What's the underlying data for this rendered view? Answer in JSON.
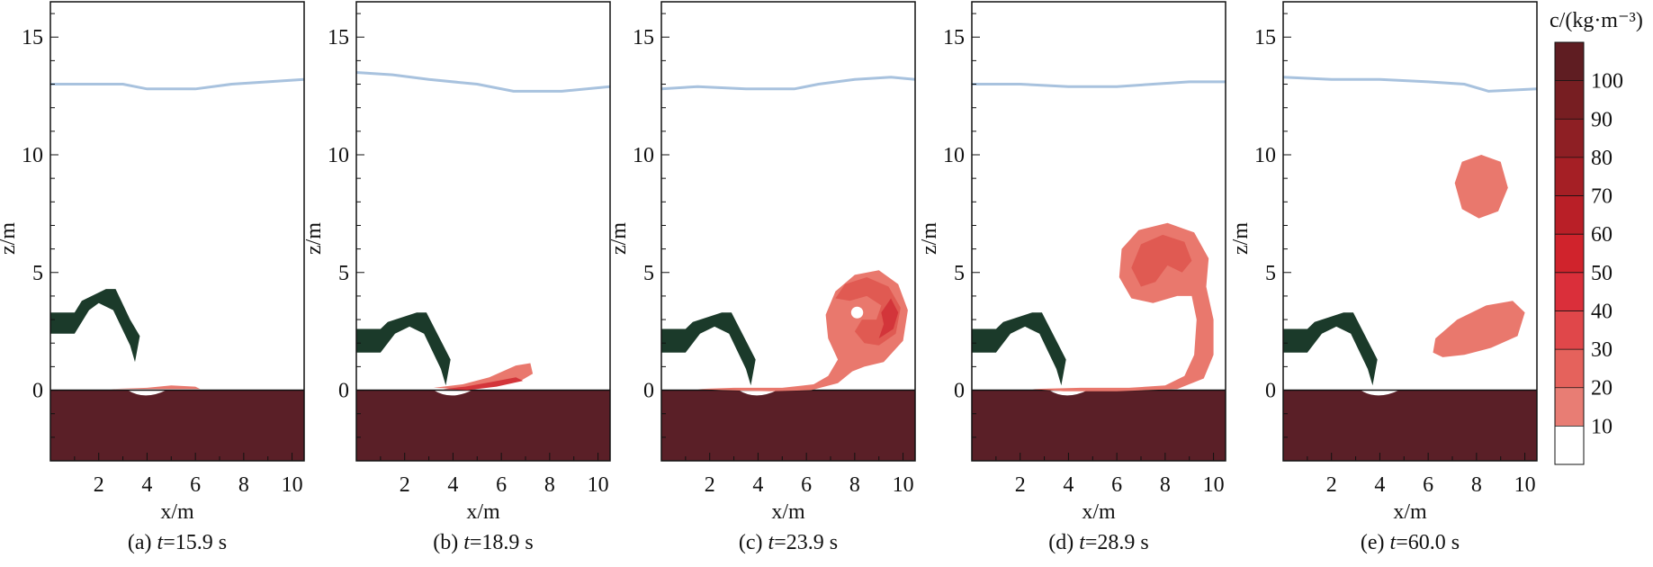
{
  "chart_data": {
    "type": "contour",
    "quantity_label": "c/(kg·m⁻³)",
    "xlabel": "x/m",
    "ylabel": "z/m",
    "xlim": [
      0,
      10.5
    ],
    "ylim": [
      -3,
      16.5
    ],
    "x_ticks": [
      "2",
      "4",
      "6",
      "8",
      "10"
    ],
    "y_ticks": [
      "0",
      "5",
      "10",
      "15"
    ],
    "colorbar": {
      "levels": [
        "10",
        "20",
        "30",
        "40",
        "50",
        "60",
        "70",
        "80",
        "90",
        "100"
      ],
      "colors": [
        "#ffffff",
        "#e87d74",
        "#e5625c",
        "#e0474a",
        "#da2f3a",
        "#d0232c",
        "#b91f27",
        "#a51f25",
        "#8e1f24",
        "#771e22",
        "#5f1d22"
      ]
    },
    "colors": {
      "sediment": "#5a1f27",
      "free_surface": "#a8c2de",
      "obstacle": "#1b3a2a",
      "plume_low": "#e9786d",
      "plume_mid": "#e05a52",
      "plume_high": "#d3353a"
    },
    "panels": [
      {
        "id": "a",
        "label": "(a)",
        "t_label": "t",
        "t_value": "=15.9 s",
        "surface": [
          [
            0,
            13.0
          ],
          [
            1.5,
            13.0
          ],
          [
            3,
            13.0
          ],
          [
            4,
            12.8
          ],
          [
            6,
            12.8
          ],
          [
            7.5,
            13.0
          ],
          [
            9,
            13.1
          ],
          [
            10.5,
            13.2
          ]
        ],
        "obstacle": [
          [
            0,
            3.3
          ],
          [
            1,
            3.3
          ],
          [
            1.3,
            3.8
          ],
          [
            2.3,
            4.3
          ],
          [
            2.7,
            4.3
          ],
          [
            3.3,
            3.0
          ],
          [
            3.7,
            2.3
          ],
          [
            3.5,
            1.2
          ],
          [
            3.3,
            1.9
          ],
          [
            2.6,
            3.4
          ],
          [
            2,
            3.7
          ],
          [
            1.6,
            3.4
          ],
          [
            1,
            2.4
          ],
          [
            0,
            2.4
          ]
        ],
        "plumes": [
          {
            "level": "low",
            "points": [
              [
                2.5,
                0.05
              ],
              [
                4,
                0.1
              ],
              [
                5,
                0.2
              ],
              [
                6,
                0.15
              ],
              [
                6.2,
                0.05
              ]
            ]
          }
        ]
      },
      {
        "id": "b",
        "label": "(b)",
        "t_label": "t",
        "t_value": "=18.9 s",
        "surface": [
          [
            0,
            13.5
          ],
          [
            1.5,
            13.4
          ],
          [
            3,
            13.2
          ],
          [
            5,
            13.0
          ],
          [
            6.5,
            12.7
          ],
          [
            8.5,
            12.7
          ],
          [
            10.5,
            12.9
          ]
        ],
        "obstacle": [
          [
            0,
            2.6
          ],
          [
            1,
            2.6
          ],
          [
            1.3,
            2.9
          ],
          [
            2.5,
            3.3
          ],
          [
            2.9,
            3.3
          ],
          [
            3.5,
            2.1
          ],
          [
            3.9,
            1.3
          ],
          [
            3.7,
            0.2
          ],
          [
            3.5,
            0.9
          ],
          [
            2.8,
            2.4
          ],
          [
            2.2,
            2.7
          ],
          [
            1.6,
            2.4
          ],
          [
            1,
            1.6
          ],
          [
            0,
            1.6
          ]
        ],
        "plumes": [
          {
            "level": "low",
            "points": [
              [
                3.2,
                0.1
              ],
              [
                4.4,
                0.25
              ],
              [
                5.5,
                0.55
              ],
              [
                6.6,
                1.05
              ],
              [
                7.2,
                1.15
              ],
              [
                7.3,
                0.7
              ],
              [
                6.8,
                0.4
              ],
              [
                5.5,
                0.2
              ],
              [
                4.3,
                0.05
              ]
            ]
          },
          {
            "level": "high",
            "points": [
              [
                3.6,
                0.05
              ],
              [
                4.5,
                0.15
              ],
              [
                5.6,
                0.35
              ],
              [
                6.6,
                0.55
              ],
              [
                6.9,
                0.4
              ],
              [
                5.8,
                0.15
              ],
              [
                4.6,
                0.0
              ]
            ]
          }
        ]
      },
      {
        "id": "c",
        "label": "(c)",
        "t_label": "t",
        "t_value": "=23.9 s",
        "surface": [
          [
            0,
            12.8
          ],
          [
            1.5,
            12.9
          ],
          [
            3.5,
            12.8
          ],
          [
            5.5,
            12.8
          ],
          [
            6.5,
            13.0
          ],
          [
            8,
            13.2
          ],
          [
            9.5,
            13.3
          ],
          [
            10.5,
            13.2
          ]
        ],
        "obstacle": [
          [
            0,
            2.6
          ],
          [
            1,
            2.6
          ],
          [
            1.3,
            2.9
          ],
          [
            2.5,
            3.3
          ],
          [
            2.9,
            3.3
          ],
          [
            3.5,
            2.1
          ],
          [
            3.9,
            1.3
          ],
          [
            3.7,
            0.2
          ],
          [
            3.5,
            0.9
          ],
          [
            2.8,
            2.4
          ],
          [
            2.2,
            2.7
          ],
          [
            1.6,
            2.4
          ],
          [
            1,
            1.6
          ],
          [
            0,
            1.6
          ]
        ],
        "plumes": [
          {
            "level": "low",
            "points": [
              [
                1.5,
                0.05
              ],
              [
                3,
                0.1
              ],
              [
                5,
                0.1
              ],
              [
                6.3,
                0.25
              ],
              [
                6.9,
                0.6
              ],
              [
                7.3,
                1.3
              ],
              [
                6.9,
                2.2
              ],
              [
                6.8,
                3.2
              ],
              [
                7.2,
                4.2
              ],
              [
                8,
                4.9
              ],
              [
                9,
                5.1
              ],
              [
                9.8,
                4.5
              ],
              [
                10.2,
                3.4
              ],
              [
                10,
                2.1
              ],
              [
                9.2,
                1.2
              ],
              [
                8.4,
                1.0
              ],
              [
                7.9,
                0.8
              ],
              [
                7.3,
                0.3
              ],
              [
                6.2,
                0.0
              ],
              [
                4.5,
                -0.05
              ],
              [
                2.5,
                0.0
              ]
            ]
          },
          {
            "level": "mid",
            "points": [
              [
                7.2,
                3.9
              ],
              [
                7.6,
                4.5
              ],
              [
                8.5,
                4.8
              ],
              [
                9.4,
                4.4
              ],
              [
                9.9,
                3.5
              ],
              [
                9.7,
                2.4
              ],
              [
                9.0,
                1.9
              ],
              [
                8.4,
                2.0
              ],
              [
                8.0,
                2.5
              ],
              [
                8.3,
                3.0
              ],
              [
                8.9,
                3.0
              ],
              [
                9.1,
                3.6
              ],
              [
                8.5,
                4.0
              ],
              [
                7.8,
                3.8
              ]
            ]
          },
          {
            "level": "high",
            "points": [
              [
                9.0,
                2.2
              ],
              [
                9.6,
                2.6
              ],
              [
                9.8,
                3.3
              ],
              [
                9.5,
                3.9
              ],
              [
                9.1,
                3.3
              ],
              [
                9.2,
                2.8
              ]
            ]
          }
        ],
        "holes": [
          [
            8.1,
            3.3,
            0.25
          ]
        ]
      },
      {
        "id": "d",
        "label": "(d)",
        "t_label": "t",
        "t_value": "=28.9 s",
        "surface": [
          [
            0,
            13.0
          ],
          [
            2,
            13.0
          ],
          [
            4,
            12.9
          ],
          [
            6,
            12.9
          ],
          [
            7.5,
            13.0
          ],
          [
            9,
            13.1
          ],
          [
            10.5,
            13.1
          ]
        ],
        "obstacle": [
          [
            0,
            2.6
          ],
          [
            1,
            2.6
          ],
          [
            1.3,
            2.9
          ],
          [
            2.5,
            3.3
          ],
          [
            2.9,
            3.3
          ],
          [
            3.5,
            2.1
          ],
          [
            3.9,
            1.3
          ],
          [
            3.7,
            0.2
          ],
          [
            3.5,
            0.9
          ],
          [
            2.8,
            2.4
          ],
          [
            2.2,
            2.7
          ],
          [
            1.6,
            2.4
          ],
          [
            1,
            1.6
          ],
          [
            0,
            1.6
          ]
        ],
        "plumes": [
          {
            "level": "low",
            "points": [
              [
                2.5,
                0.05
              ],
              [
                4.5,
                0.1
              ],
              [
                6.5,
                0.1
              ],
              [
                8,
                0.2
              ],
              [
                8.8,
                0.6
              ],
              [
                9.2,
                1.5
              ],
              [
                9.3,
                3.0
              ],
              [
                9.1,
                4.0
              ],
              [
                8.5,
                4.0
              ],
              [
                7.5,
                3.7
              ],
              [
                6.6,
                3.9
              ],
              [
                6.1,
                4.8
              ],
              [
                6.2,
                6.0
              ],
              [
                6.9,
                6.8
              ],
              [
                8.1,
                7.1
              ],
              [
                9.2,
                6.7
              ],
              [
                9.8,
                5.6
              ],
              [
                9.7,
                4.4
              ],
              [
                10.0,
                3.0
              ],
              [
                10.0,
                1.5
              ],
              [
                9.6,
                0.5
              ],
              [
                8.5,
                0.05
              ],
              [
                6,
                -0.05
              ],
              [
                3.8,
                -0.05
              ]
            ]
          },
          {
            "level": "mid",
            "points": [
              [
                6.6,
                5.2
              ],
              [
                7.0,
                6.2
              ],
              [
                7.9,
                6.6
              ],
              [
                8.8,
                6.3
              ],
              [
                9.1,
                5.5
              ],
              [
                8.7,
                5.0
              ],
              [
                8.1,
                5.3
              ],
              [
                7.6,
                4.6
              ],
              [
                7.0,
                4.4
              ]
            ]
          }
        ],
        "holes": []
      },
      {
        "id": "e",
        "label": "(e)",
        "t_label": "t",
        "t_value": "=60.0 s",
        "surface": [
          [
            0,
            13.3
          ],
          [
            2,
            13.2
          ],
          [
            4,
            13.2
          ],
          [
            6,
            13.1
          ],
          [
            7.5,
            13.0
          ],
          [
            8.5,
            12.7
          ],
          [
            10.5,
            12.8
          ]
        ],
        "obstacle": [
          [
            0,
            2.6
          ],
          [
            1,
            2.6
          ],
          [
            1.3,
            2.9
          ],
          [
            2.5,
            3.3
          ],
          [
            2.9,
            3.3
          ],
          [
            3.5,
            2.1
          ],
          [
            3.9,
            1.3
          ],
          [
            3.7,
            0.2
          ],
          [
            3.5,
            0.9
          ],
          [
            2.8,
            2.4
          ],
          [
            2.2,
            2.7
          ],
          [
            1.6,
            2.4
          ],
          [
            1,
            1.6
          ],
          [
            0,
            1.6
          ]
        ],
        "plumes": [
          {
            "level": "low",
            "points": [
              [
                7.1,
                8.8
              ],
              [
                7.4,
                9.7
              ],
              [
                8.2,
                10.0
              ],
              [
                9.0,
                9.7
              ],
              [
                9.3,
                8.6
              ],
              [
                8.9,
                7.6
              ],
              [
                8.1,
                7.3
              ],
              [
                7.4,
                7.7
              ]
            ]
          },
          {
            "level": "low",
            "points": [
              [
                6.2,
                1.6
              ],
              [
                6.3,
                2.2
              ],
              [
                7.2,
                3.0
              ],
              [
                8.4,
                3.6
              ],
              [
                9.5,
                3.8
              ],
              [
                10.0,
                3.3
              ],
              [
                9.7,
                2.3
              ],
              [
                8.6,
                1.8
              ],
              [
                7.5,
                1.5
              ],
              [
                6.6,
                1.4
              ]
            ]
          }
        ],
        "holes": []
      }
    ]
  }
}
